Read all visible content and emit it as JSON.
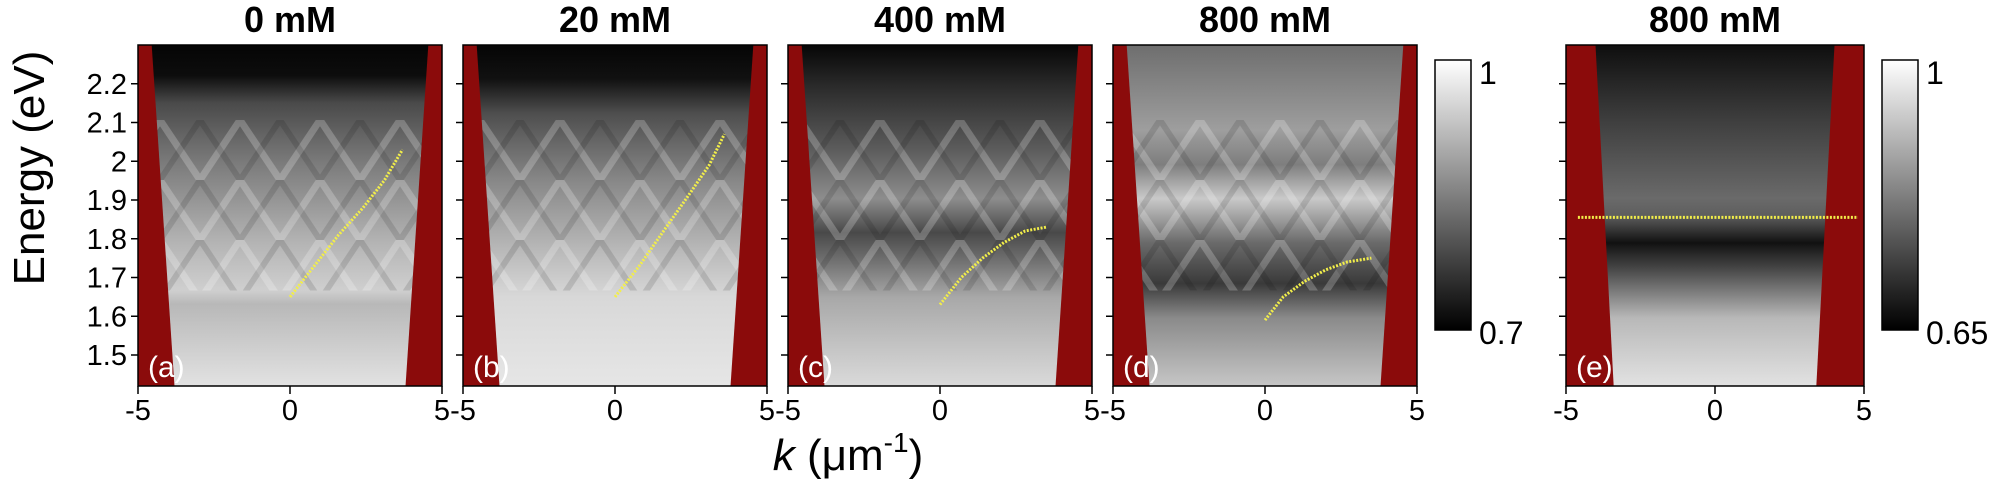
{
  "chart_data": {
    "type": "heatmap",
    "ylabel": "Energy (eV)",
    "xlabel_symbol": "k",
    "xlabel_unit": " (μm",
    "xlabel_sup": "-1",
    "xlabel_close": ")",
    "xlim": [
      -5,
      5
    ],
    "ylim": [
      1.42,
      2.3
    ],
    "yticks": [
      1.5,
      1.6,
      1.7,
      1.8,
      1.9,
      2.0,
      2.1,
      2.2
    ],
    "ytick_labels": [
      "1.5",
      "1.6",
      "1.7",
      "1.8",
      "1.9",
      "2",
      "2.1",
      "2.2"
    ],
    "xticks": [
      -5,
      0,
      5
    ],
    "xtick_labels": [
      "-5",
      "0",
      "5"
    ],
    "grayscale_colormap": "black-to-white",
    "mask_color": "#8b0b0b",
    "fit_line_color": "#f2ee4a",
    "panels": [
      {
        "title": "0 mM",
        "label": "(a)",
        "colorbar": null,
        "fit_line": {
          "x": [
            0,
            0.8,
            1.6,
            2.4,
            3.1,
            3.7
          ],
          "y": [
            1.65,
            1.73,
            1.81,
            1.88,
            1.95,
            2.03
          ]
        }
      },
      {
        "title": "20 mM",
        "label": "(b)",
        "colorbar": null,
        "fit_line": {
          "x": [
            0,
            0.8,
            1.6,
            2.4,
            3.1,
            3.6
          ],
          "y": [
            1.65,
            1.73,
            1.82,
            1.91,
            1.99,
            2.07
          ]
        }
      },
      {
        "title": "400 mM",
        "label": "(c)",
        "colorbar": {
          "min": "0.7",
          "max": "1"
        },
        "fit_line": {
          "x": [
            0,
            0.7,
            1.4,
            2.1,
            2.8,
            3.5
          ],
          "y": [
            1.63,
            1.7,
            1.75,
            1.79,
            1.82,
            1.83
          ]
        }
      },
      {
        "title": "800 mM",
        "label": "(d)",
        "colorbar": null,
        "fit_line": {
          "x": [
            0,
            0.6,
            1.3,
            2.0,
            2.7,
            3.5
          ],
          "y": [
            1.59,
            1.65,
            1.69,
            1.72,
            1.74,
            1.75
          ]
        }
      },
      {
        "title": "800 mM",
        "label": "(e)",
        "colorbar": {
          "min": "0.65",
          "max": "1"
        },
        "fit_line": {
          "x": [
            -4.6,
            4.8
          ],
          "y": [
            1.855,
            1.855
          ]
        }
      }
    ]
  }
}
